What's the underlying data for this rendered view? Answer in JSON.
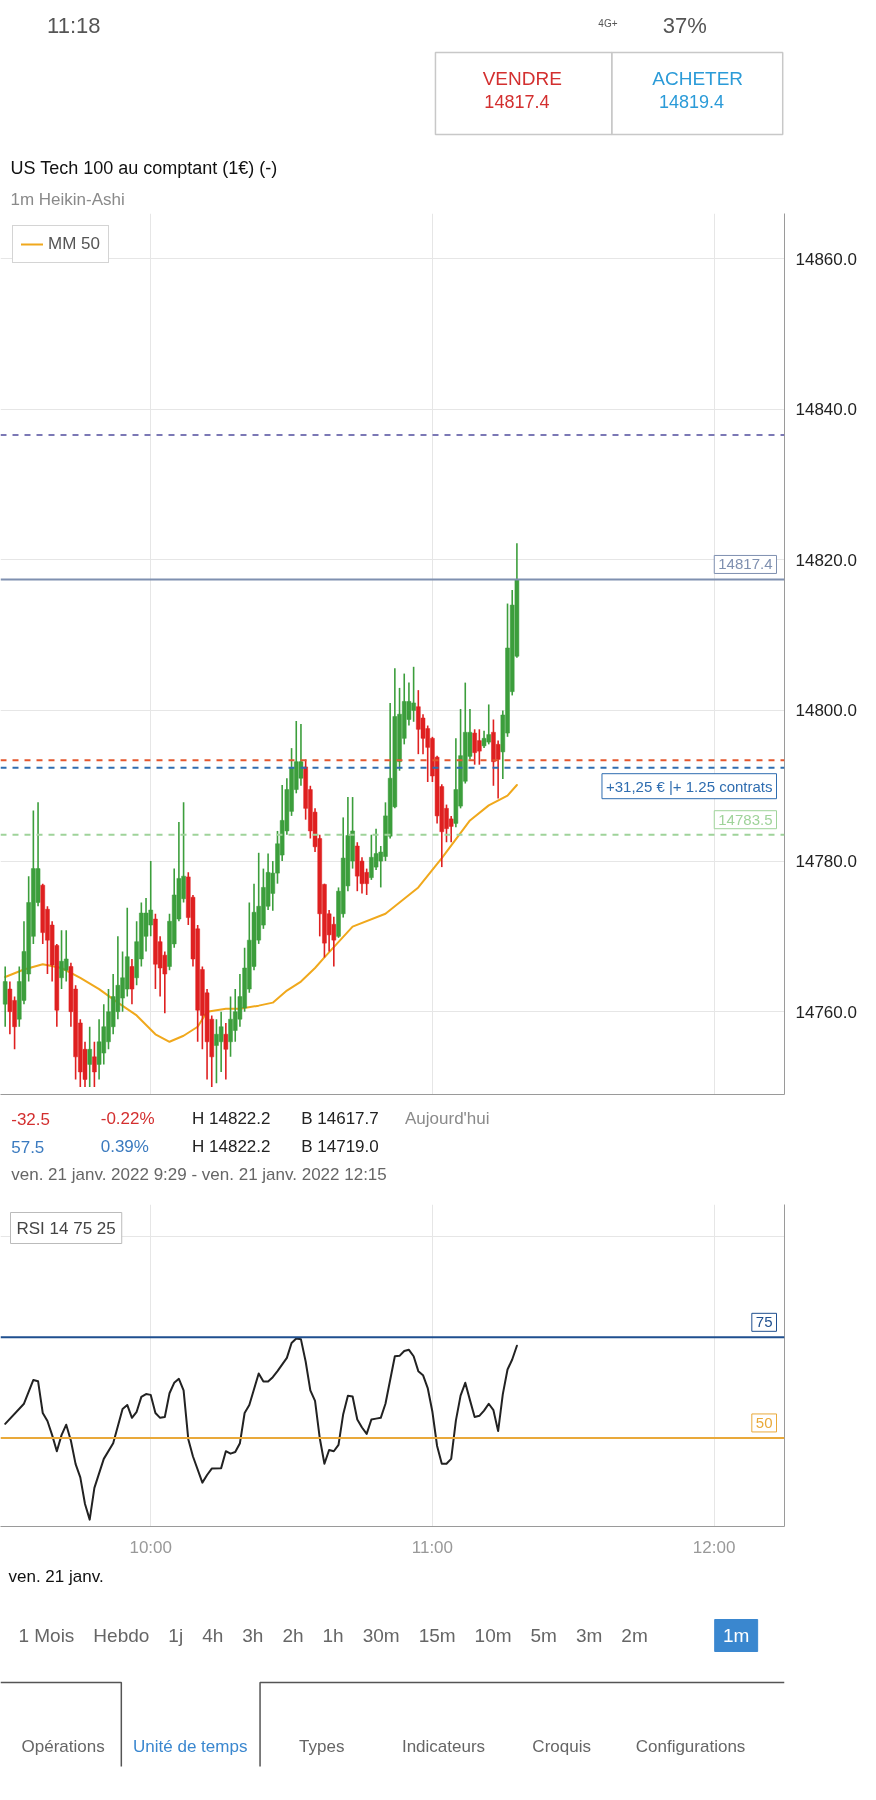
{
  "chart_data": [
    {
      "type": "other",
      "annotations": [
        "11:18",
        "4G+",
        "37%",
        "VENDRE",
        "14817.4",
        "ACHETER",
        "14819.4"
      ]
    },
    {
      "type": "candlestick",
      "title": "US Tech 100 au comptant (1€) (-)",
      "subtitle": "1m Heikin-Ashi",
      "x": [
        "2022-01-21T09:29",
        "2022-01-21T09:30",
        "2022-01-21T09:31",
        "2022-01-21T09:32",
        "2022-01-21T09:33",
        "2022-01-21T09:34",
        "2022-01-21T09:35",
        "2022-01-21T09:36",
        "2022-01-21T09:37",
        "2022-01-21T09:38",
        "2022-01-21T09:39",
        "2022-01-21T09:40",
        "2022-01-21T09:41",
        "2022-01-21T09:42",
        "2022-01-21T09:43",
        "2022-01-21T09:44",
        "2022-01-21T09:45",
        "2022-01-21T09:46",
        "2022-01-21T09:47",
        "2022-01-21T09:48",
        "2022-01-21T09:49",
        "2022-01-21T09:50",
        "2022-01-21T09:51",
        "2022-01-21T09:52",
        "2022-01-21T09:53",
        "2022-01-21T09:54",
        "2022-01-21T09:55",
        "2022-01-21T09:56",
        "2022-01-21T09:57",
        "2022-01-21T09:58",
        "2022-01-21T09:59",
        "2022-01-21T10:00",
        "2022-01-21T10:01",
        "2022-01-21T10:02",
        "2022-01-21T10:03",
        "2022-01-21T10:04",
        "2022-01-21T10:05",
        "2022-01-21T10:06",
        "2022-01-21T10:07",
        "2022-01-21T10:08",
        "2022-01-21T10:09",
        "2022-01-21T10:10",
        "2022-01-21T10:11",
        "2022-01-21T10:12",
        "2022-01-21T10:13",
        "2022-01-21T10:14",
        "2022-01-21T10:15",
        "2022-01-21T10:16",
        "2022-01-21T10:17",
        "2022-01-21T10:18",
        "2022-01-21T10:19",
        "2022-01-21T10:20",
        "2022-01-21T10:21",
        "2022-01-21T10:22",
        "2022-01-21T10:23",
        "2022-01-21T10:24",
        "2022-01-21T10:25",
        "2022-01-21T10:26",
        "2022-01-21T10:27",
        "2022-01-21T10:28",
        "2022-01-21T10:29",
        "2022-01-21T10:30",
        "2022-01-21T10:31",
        "2022-01-21T10:32",
        "2022-01-21T10:33",
        "2022-01-21T10:34",
        "2022-01-21T10:35",
        "2022-01-21T10:36",
        "2022-01-21T10:37",
        "2022-01-21T10:38",
        "2022-01-21T10:39",
        "2022-01-21T10:40",
        "2022-01-21T10:41",
        "2022-01-21T10:42",
        "2022-01-21T10:43",
        "2022-01-21T10:44",
        "2022-01-21T10:45",
        "2022-01-21T10:46",
        "2022-01-21T10:47",
        "2022-01-21T10:48",
        "2022-01-21T10:49",
        "2022-01-21T10:50",
        "2022-01-21T10:51",
        "2022-01-21T10:52",
        "2022-01-21T10:53",
        "2022-01-21T10:54",
        "2022-01-21T10:55",
        "2022-01-21T10:56",
        "2022-01-21T10:57",
        "2022-01-21T10:58",
        "2022-01-21T10:59",
        "2022-01-21T11:00",
        "2022-01-21T11:01",
        "2022-01-21T11:02",
        "2022-01-21T11:03",
        "2022-01-21T11:04",
        "2022-01-21T11:05",
        "2022-01-21T11:06",
        "2022-01-21T11:07",
        "2022-01-21T11:08",
        "2022-01-21T11:09",
        "2022-01-21T11:10",
        "2022-01-21T11:11",
        "2022-01-21T11:12",
        "2022-01-21T11:13",
        "2022-01-21T11:14",
        "2022-01-21T11:15",
        "2022-01-21T11:16",
        "2022-01-21T11:17",
        "2022-01-21T11:18"
      ],
      "ohlc": [
        [
          14761.0,
          14766.0,
          14758.0,
          14764.0
        ],
        [
          14763.0,
          14764.0,
          14757.0,
          14760.0
        ],
        [
          14761.5,
          14762.0,
          14755.0,
          14758.0
        ],
        [
          14759.0,
          14766.0,
          14758.0,
          14764.0
        ],
        [
          14761.5,
          14772.0,
          14761.0,
          14768.0
        ],
        [
          14765.0,
          14778.0,
          14764.0,
          14774.5
        ],
        [
          14770.0,
          14786.7,
          14769.0,
          14779.0
        ],
        [
          14774.5,
          14787.8,
          14774.0,
          14779.0
        ],
        [
          14776.8,
          14777.0,
          14769.0,
          14770.5
        ],
        [
          14773.6,
          14774.0,
          14765.0,
          14769.5
        ],
        [
          14771.5,
          14772.0,
          14764.0,
          14766.2
        ],
        [
          14768.8,
          14769.0,
          14758.0,
          14760.2
        ],
        [
          14764.5,
          14770.8,
          14763.0,
          14766.7
        ],
        [
          14765.5,
          14770.8,
          14764.0,
          14767.0
        ],
        [
          14766.0,
          14766.5,
          14758.0,
          14760.0
        ],
        [
          14763.0,
          14763.5,
          14751.0,
          14754.0
        ],
        [
          14758.5,
          14759.0,
          14750.0,
          14752.0
        ],
        [
          14755.0,
          14756.0,
          14750.0,
          14751.0
        ],
        [
          14753.0,
          14758.0,
          14750.0,
          14755.0
        ],
        [
          14754.0,
          14756.0,
          14750.0,
          14752.0
        ],
        [
          14753.0,
          14759.0,
          14751.0,
          14756.0
        ],
        [
          14754.5,
          14761.0,
          14753.0,
          14758.0
        ],
        [
          14756.0,
          14763.0,
          14755.0,
          14760.0
        ],
        [
          14758.0,
          14765.0,
          14757.0,
          14762.0
        ],
        [
          14760.0,
          14770.0,
          14759.0,
          14763.5
        ],
        [
          14761.8,
          14768.0,
          14760.0,
          14764.5
        ],
        [
          14763.0,
          14773.8,
          14762.0,
          14767.3
        ],
        [
          14766.0,
          14767.0,
          14761.0,
          14763.0
        ],
        [
          14764.5,
          14772.0,
          14763.5,
          14769.3
        ],
        [
          14767.0,
          14774.5,
          14766.0,
          14773.1
        ],
        [
          14770.0,
          14775.1,
          14768.0,
          14773.1
        ],
        [
          14771.5,
          14780.0,
          14770.0,
          14773.5
        ],
        [
          14772.3,
          14773.0,
          14763.0,
          14766.3
        ],
        [
          14769.3,
          14770.0,
          14762.0,
          14765.8
        ],
        [
          14767.5,
          14768.0,
          14759.8,
          14765.0
        ],
        [
          14766.0,
          14773.0,
          14765.5,
          14772.0
        ],
        [
          14769.0,
          14779.0,
          14768.5,
          14775.5
        ],
        [
          14772.3,
          14785.2,
          14772.0,
          14777.7
        ],
        [
          14775.0,
          14787.8,
          14774.5,
          14778.0
        ],
        [
          14777.9,
          14778.5,
          14771.5,
          14772.5
        ],
        [
          14775.2,
          14775.5,
          14766.0,
          14767.0
        ],
        [
          14771.0,
          14771.5,
          14756.0,
          14760.2
        ],
        [
          14765.6,
          14766.0,
          14755.0,
          14759.5
        ],
        [
          14762.5,
          14763.0,
          14751.0,
          14756.0
        ],
        [
          14759.0,
          14759.5,
          14750.0,
          14754.0
        ],
        [
          14755.5,
          14759.0,
          14750.5,
          14757.0
        ],
        [
          14756.0,
          14760.0,
          14752.0,
          14758.0
        ],
        [
          14757.0,
          14758.5,
          14751.0,
          14755.0
        ],
        [
          14756.0,
          14762.0,
          14754.0,
          14759.0
        ],
        [
          14757.5,
          14763.0,
          14756.0,
          14760.0
        ],
        [
          14759.0,
          14765.0,
          14758.0,
          14762.0
        ],
        [
          14760.5,
          14768.5,
          14760.0,
          14765.8
        ],
        [
          14763.0,
          14774.5,
          14762.5,
          14769.5
        ],
        [
          14766.0,
          14777.0,
          14765.5,
          14773.2
        ],
        [
          14769.5,
          14781.1,
          14769.0,
          14774.0
        ],
        [
          14771.5,
          14779.0,
          14771.0,
          14776.5
        ],
        [
          14774.0,
          14781.0,
          14773.5,
          14778.5
        ],
        [
          14775.7,
          14780.0,
          14773.4,
          14778.4
        ],
        [
          14778.4,
          14784.0,
          14777.0,
          14782.3
        ],
        [
          14780.8,
          14790.1,
          14780.0,
          14785.4
        ],
        [
          14784.0,
          14791.0,
          14783.5,
          14789.5
        ],
        [
          14786.6,
          14795.0,
          14786.0,
          14792.4
        ],
        [
          14789.5,
          14798.6,
          14789.0,
          14793.2
        ],
        [
          14791.0,
          14798.2,
          14790.0,
          14793.2
        ],
        [
          14792.5,
          14793.5,
          14785.5,
          14787.0
        ],
        [
          14789.5,
          14790.0,
          14783.0,
          14784.0
        ],
        [
          14786.5,
          14787.0,
          14781.2,
          14781.9
        ],
        [
          14783.0,
          14783.5,
          14770.0,
          14773.0
        ],
        [
          14776.9,
          14777.0,
          14767.2,
          14769.1
        ],
        [
          14773.0,
          14773.5,
          14768.0,
          14770.2
        ],
        [
          14771.6,
          14772.6,
          14766.0,
          14769.5
        ],
        [
          14770.0,
          14776.5,
          14769.8,
          14776.0
        ],
        [
          14773.0,
          14785.8,
          14772.5,
          14780.4
        ],
        [
          14776.7,
          14788.5,
          14776.0,
          14783.4
        ],
        [
          14780.0,
          14788.5,
          14779.0,
          14784.0
        ],
        [
          14782.0,
          14782.5,
          14776.0,
          14778.0
        ],
        [
          14780.0,
          14780.5,
          14775.7,
          14777.0
        ],
        [
          14778.5,
          14779.0,
          14775.5,
          14777.0
        ],
        [
          14777.8,
          14783.5,
          14777.5,
          14780.5
        ],
        [
          14779.2,
          14784.3,
          14778.8,
          14781.0
        ],
        [
          14780.0,
          14782.0,
          14776.5,
          14781.2
        ],
        [
          14780.6,
          14787.8,
          14780.0,
          14786.0
        ],
        [
          14783.3,
          14801.0,
          14783.0,
          14791.0
        ],
        [
          14787.2,
          14805.6,
          14787.0,
          14799.2
        ],
        [
          14793.2,
          14803.0,
          14792.0,
          14799.5
        ],
        [
          14796.3,
          14804.9,
          14795.5,
          14801.2
        ],
        [
          14798.8,
          14803.7,
          14798.0,
          14801.2
        ],
        [
          14800.0,
          14805.8,
          14798.5,
          14801.0
        ],
        [
          14800.5,
          14802.7,
          14794.2,
          14797.5
        ],
        [
          14799.0,
          14799.5,
          14794.2,
          14796.3
        ],
        [
          14797.6,
          14798.0,
          14790.5,
          14795.1
        ],
        [
          14796.3,
          14796.5,
          14790.5,
          14791.3
        ],
        [
          14793.8,
          14794.0,
          14785.0,
          14786.0
        ],
        [
          14789.9,
          14790.2,
          14779.2,
          14783.9
        ],
        [
          14787.0,
          14787.5,
          14782.5,
          14784.3
        ],
        [
          14785.6,
          14786.0,
          14782.5,
          14784.6
        ],
        [
          14785.0,
          14796.3,
          14784.5,
          14789.5
        ],
        [
          14787.3,
          14800.2,
          14787.0,
          14794.0
        ],
        [
          14790.6,
          14803.7,
          14790.3,
          14797.1
        ],
        [
          14793.9,
          14800.2,
          14793.5,
          14797.1
        ],
        [
          14797.0,
          14797.5,
          14792.8,
          14794.4
        ],
        [
          14796.0,
          14797.5,
          14792.8,
          14794.6
        ],
        [
          14795.3,
          14797.3,
          14795.0,
          14796.3
        ],
        [
          14795.8,
          14800.8,
          14795.5,
          14796.8
        ],
        [
          14797.1,
          14798.8,
          14790.0,
          14793.2
        ],
        [
          14795.5,
          14796.0,
          14788.3,
          14793.5
        ],
        [
          14794.5,
          14800.0,
          14790.9,
          14799.4
        ],
        [
          14797.0,
          14814.2,
          14796.5,
          14808.3
        ],
        [
          14802.5,
          14816.0,
          14802.0,
          14814.0
        ],
        [
          14807.2,
          14822.2,
          14807.0,
          14817.4
        ]
      ],
      "colors": [
        "#3c9e3c",
        "#df2020",
        "#df2020",
        "#3c9e3c",
        "#3c9e3c",
        "#3c9e3c",
        "#3c9e3c",
        "#3c9e3c",
        "#df2020",
        "#df2020",
        "#df2020",
        "#df2020",
        "#3c9e3c",
        "#3c9e3c",
        "#df2020",
        "#df2020",
        "#df2020",
        "#df2020",
        "#3c9e3c",
        "#df2020",
        "#3c9e3c",
        "#3c9e3c",
        "#3c9e3c",
        "#3c9e3c",
        "#3c9e3c",
        "#3c9e3c",
        "#3c9e3c",
        "#df2020",
        "#3c9e3c",
        "#3c9e3c",
        "#3c9e3c",
        "#3c9e3c",
        "#df2020",
        "#df2020",
        "#df2020",
        "#3c9e3c",
        "#3c9e3c",
        "#3c9e3c",
        "#3c9e3c",
        "#df2020",
        "#df2020",
        "#df2020",
        "#df2020",
        "#df2020",
        "#df2020",
        "#3c9e3c",
        "#3c9e3c",
        "#df2020",
        "#3c9e3c",
        "#3c9e3c",
        "#3c9e3c",
        "#3c9e3c",
        "#3c9e3c",
        "#3c9e3c",
        "#3c9e3c",
        "#3c9e3c",
        "#3c9e3c",
        "#3c9e3c",
        "#3c9e3c",
        "#3c9e3c",
        "#3c9e3c",
        "#3c9e3c",
        "#3c9e3c",
        "#3c9e3c",
        "#df2020",
        "#df2020",
        "#df2020",
        "#df2020",
        "#df2020",
        "#df2020",
        "#df2020",
        "#3c9e3c",
        "#3c9e3c",
        "#3c9e3c",
        "#3c9e3c",
        "#df2020",
        "#df2020",
        "#df2020",
        "#3c9e3c",
        "#3c9e3c",
        "#3c9e3c",
        "#3c9e3c",
        "#3c9e3c",
        "#3c9e3c",
        "#3c9e3c",
        "#3c9e3c",
        "#3c9e3c",
        "#3c9e3c",
        "#df2020",
        "#df2020",
        "#df2020",
        "#df2020",
        "#df2020",
        "#df2020",
        "#df2020",
        "#df2020",
        "#3c9e3c",
        "#3c9e3c",
        "#3c9e3c",
        "#3c9e3c",
        "#df2020",
        "#df2020",
        "#3c9e3c",
        "#3c9e3c",
        "#df2020",
        "#df2020",
        "#3c9e3c",
        "#3c9e3c",
        "#3c9e3c",
        "#3c9e3c"
      ],
      "series": [
        {
          "type": "line",
          "name": "MM 50",
          "color": "#f0a81c",
          "x": [
            "2022-01-21T09:29",
            "2022-01-21T09:33",
            "2022-01-21T09:37",
            "2022-01-21T09:41",
            "2022-01-21T09:45",
            "2022-01-21T09:49",
            "2022-01-21T09:53",
            "2022-01-21T09:57",
            "2022-01-21T10:01",
            "2022-01-21T10:04",
            "2022-01-21T10:07",
            "2022-01-21T10:10",
            "2022-01-21T10:12",
            "2022-01-21T10:16",
            "2022-01-21T10:19",
            "2022-01-21T10:23",
            "2022-01-21T10:26",
            "2022-01-21T10:29",
            "2022-01-21T10:32",
            "2022-01-21T10:35",
            "2022-01-21T10:37",
            "2022-01-21T10:43",
            "2022-01-21T10:50",
            "2022-01-21T10:57",
            "2022-01-21T11:02",
            "2022-01-21T11:08",
            "2022-01-21T11:12",
            "2022-01-21T11:16",
            "2022-01-21T11:18"
          ],
          "values": [
            14764.6,
            14765.6,
            14766.3,
            14765.8,
            14764.5,
            14763.0,
            14761.2,
            14759.5,
            14757.0,
            14756.0,
            14756.8,
            14758.0,
            14760.0,
            14760.4,
            14760.4,
            14760.8,
            14761.2,
            14762.8,
            14764.0,
            14765.8,
            14767.2,
            14771.3,
            14773.0,
            14776.5,
            14780.4,
            14785.4,
            14787.4,
            14788.7,
            14790.1
          ]
        }
      ],
      "xlim": [
        "2022-01-21T09:28",
        "2022-01-21T12:15"
      ],
      "ylim": [
        14749,
        14866
      ],
      "xticks": [
        {
          "value": "2022-01-21T10:00",
          "label": null
        },
        {
          "value": "2022-01-21T11:00",
          "label": null
        },
        {
          "value": "2022-01-21T12:00",
          "label": null
        }
      ],
      "yticks": [
        {
          "value": 14760,
          "label": "14760.0"
        },
        {
          "value": 14780,
          "label": "14780.0"
        },
        {
          "value": 14800,
          "label": "14800.0"
        },
        {
          "value": 14820,
          "label": "14820.0"
        },
        {
          "value": 14840,
          "label": "14840.0"
        },
        {
          "value": 14860,
          "label": "14860.0"
        }
      ],
      "tick_labels": "y",
      "grid": true,
      "legend": "top left",
      "ref_lines": [
        {
          "axis": "y",
          "value": 14836.6,
          "color": "#7b78b5",
          "line_style": "dashed"
        },
        {
          "axis": "y",
          "value": 14817.4,
          "label": "14817.4",
          "color": "#7f90b0"
        },
        {
          "axis": "y",
          "value": 14793.4,
          "color": "#e4572e",
          "line_style": "dashed"
        },
        {
          "axis": "y",
          "value": 14792.4,
          "label": "+31,25 € |+ 1.25 contrats",
          "color": "#2f6db0",
          "line_style": "dashed"
        },
        {
          "axis": "y",
          "value": 14783.5,
          "label": "14783.5",
          "color": "#9fd39a",
          "line_style": "dashed"
        }
      ],
      "annotations": [
        "-32.5",
        "-0.22%",
        "H 14822.2",
        "B 14617.7",
        "Aujourd'hui",
        "57.5",
        "0.39%",
        "H 14822.2",
        "B 14719.0",
        "ven. 21 janv. 2022 9:29 - ven. 21 janv. 2022 12:15"
      ]
    },
    {
      "type": "line",
      "title": "RSI 14 75 25",
      "series": [
        {
          "color": "#222222",
          "x": [
            "2022-01-21T09:29",
            "2022-01-21T09:33",
            "2022-01-21T09:35",
            "2022-01-21T09:36",
            "2022-01-21T09:37",
            "2022-01-21T09:38",
            "2022-01-21T09:39",
            "2022-01-21T09:40",
            "2022-01-21T09:41",
            "2022-01-21T09:42",
            "2022-01-21T09:43",
            "2022-01-21T09:44",
            "2022-01-21T09:45",
            "2022-01-21T09:46",
            "2022-01-21T09:47",
            "2022-01-21T09:48",
            "2022-01-21T09:50",
            "2022-01-21T09:52",
            "2022-01-21T09:54",
            "2022-01-21T09:55",
            "2022-01-21T09:56",
            "2022-01-21T09:57",
            "2022-01-21T09:58",
            "2022-01-21T09:59",
            "2022-01-21T10:00",
            "2022-01-21T10:01",
            "2022-01-21T10:02",
            "2022-01-21T10:03",
            "2022-01-21T10:04",
            "2022-01-21T10:05",
            "2022-01-21T10:06",
            "2022-01-21T10:07",
            "2022-01-21T10:08",
            "2022-01-21T10:09",
            "2022-01-21T10:11",
            "2022-01-21T10:12",
            "2022-01-21T10:13",
            "2022-01-21T10:15",
            "2022-01-21T10:16",
            "2022-01-21T10:17",
            "2022-01-21T10:18",
            "2022-01-21T10:19",
            "2022-01-21T10:20",
            "2022-01-21T10:21",
            "2022-01-21T10:23",
            "2022-01-21T10:24",
            "2022-01-21T10:25",
            "2022-01-21T10:26",
            "2022-01-21T10:27",
            "2022-01-21T10:29",
            "2022-01-21T10:30",
            "2022-01-21T10:31",
            "2022-01-21T10:32",
            "2022-01-21T10:33",
            "2022-01-21T10:34",
            "2022-01-21T10:35",
            "2022-01-21T10:36",
            "2022-01-21T10:37",
            "2022-01-21T10:38",
            "2022-01-21T10:39",
            "2022-01-21T10:40",
            "2022-01-21T10:41",
            "2022-01-21T10:42",
            "2022-01-21T10:43",
            "2022-01-21T10:44",
            "2022-01-21T10:45",
            "2022-01-21T10:46",
            "2022-01-21T10:47",
            "2022-01-21T10:48",
            "2022-01-21T10:49",
            "2022-01-21T10:50",
            "2022-01-21T10:52",
            "2022-01-21T10:53",
            "2022-01-21T10:54",
            "2022-01-21T10:55",
            "2022-01-21T10:56",
            "2022-01-21T10:57",
            "2022-01-21T10:58",
            "2022-01-21T10:59",
            "2022-01-21T11:00",
            "2022-01-21T11:01",
            "2022-01-21T11:02",
            "2022-01-21T11:03",
            "2022-01-21T11:04",
            "2022-01-21T11:05",
            "2022-01-21T11:06",
            "2022-01-21T11:07",
            "2022-01-21T11:08",
            "2022-01-21T11:09",
            "2022-01-21T11:10",
            "2022-01-21T11:11",
            "2022-01-21T11:12",
            "2022-01-21T11:13",
            "2022-01-21T11:14",
            "2022-01-21T11:15",
            "2022-01-21T11:16",
            "2022-01-21T11:17",
            "2022-01-21T11:18"
          ],
          "values": [
            53.5,
            58.5,
            64.4,
            64.1,
            56.2,
            54.2,
            50.7,
            46.7,
            50.7,
            53.3,
            49.3,
            43.5,
            40.2,
            33.6,
            29.7,
            37.6,
            44.8,
            48.7,
            57.2,
            58.2,
            55.0,
            56.5,
            60.2,
            60.9,
            60.7,
            56.2,
            55.0,
            55.2,
            61.1,
            63.7,
            64.7,
            61.8,
            49.7,
            45.4,
            38.9,
            40.8,
            42.4,
            42.5,
            46.7,
            46.1,
            46.5,
            48.7,
            56.2,
            58.2,
            66.0,
            64.0,
            64.0,
            65.1,
            66.6,
            69.9,
            73.6,
            74.7,
            74.5,
            69.0,
            61.8,
            59.2,
            50.0,
            43.6,
            47.0,
            46.7,
            48.3,
            55.9,
            60.5,
            60.3,
            54.6,
            52.6,
            51.0,
            54.6,
            54.8,
            55.0,
            58.5,
            70.3,
            70.4,
            71.6,
            71.9,
            70.3,
            66.6,
            65.6,
            62.4,
            56.5,
            48.0,
            43.6,
            43.6,
            44.8,
            54.3,
            60.5,
            63.7,
            59.4,
            55.2,
            55.5,
            56.8,
            58.5,
            56.9,
            51.7,
            60.9,
            67.0,
            69.5,
            72.9
          ]
        }
      ],
      "xlim": [
        "2022-01-21T09:28",
        "2022-01-21T12:15"
      ],
      "ylim": [
        28,
        108
      ],
      "xticks": [
        {
          "value": "2022-01-21T10:00",
          "label": "10:00"
        },
        {
          "value": "2022-01-21T11:00",
          "label": "11:00"
        },
        {
          "value": "2022-01-21T12:00",
          "label": "12:00"
        }
      ],
      "yticks": [
        {
          "value": 100,
          "label": null
        }
      ],
      "tick_labels": "x",
      "grid": true,
      "ref_lines": [
        {
          "axis": "y",
          "value": 75,
          "label": "75",
          "color": "#1f4f8f"
        },
        {
          "axis": "y",
          "value": 50,
          "label": "50",
          "color": "#e9a93a"
        }
      ],
      "annotations": [
        "ven. 21 janv."
      ]
    },
    {
      "type": "other",
      "annotations": [
        "1 Mois",
        "Hebdo",
        "1j",
        "4h",
        "3h",
        "2h",
        "1h",
        "30m",
        "15m",
        "10m",
        "5m",
        "3m",
        "2m",
        "1m",
        "Opérations",
        "Unité de temps",
        "Types",
        "Indicateurs",
        "Croquis",
        "Configurations"
      ]
    }
  ]
}
